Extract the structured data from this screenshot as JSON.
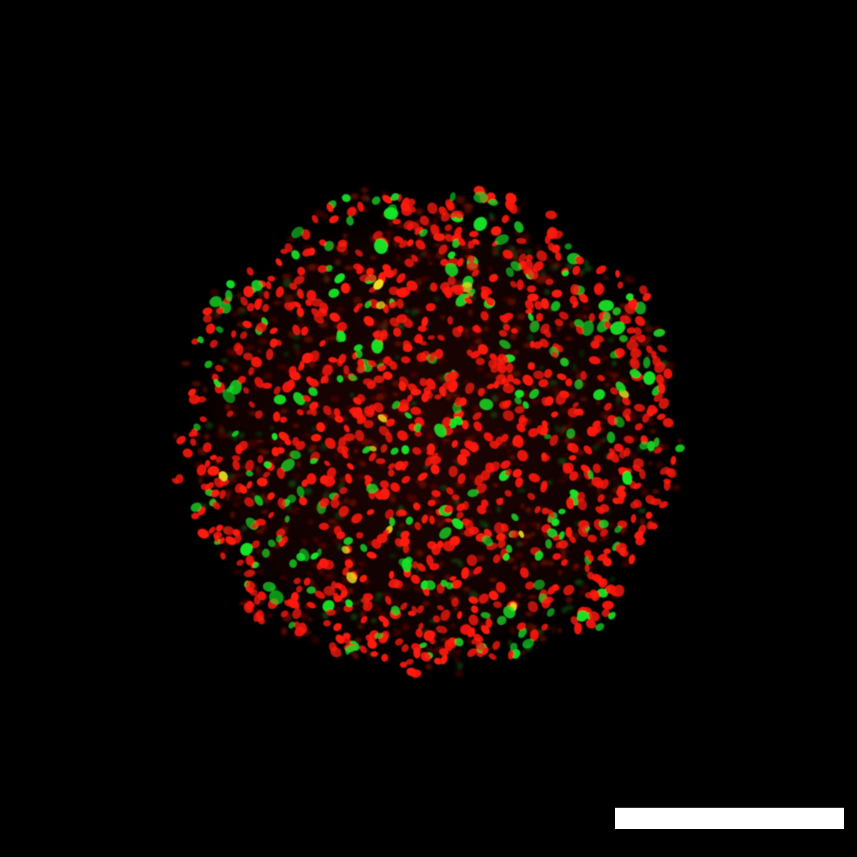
{
  "image": {
    "description_tag": "fluorescence-micrograph",
    "background_color": "#000000",
    "channels": [
      {
        "name": "red",
        "color": "#ff1a10"
      },
      {
        "name": "green",
        "color": "#18e628"
      },
      {
        "name": "merge",
        "color": "#f2e020"
      }
    ]
  },
  "scale_bar": {
    "color": "#ffffff",
    "label": ""
  }
}
